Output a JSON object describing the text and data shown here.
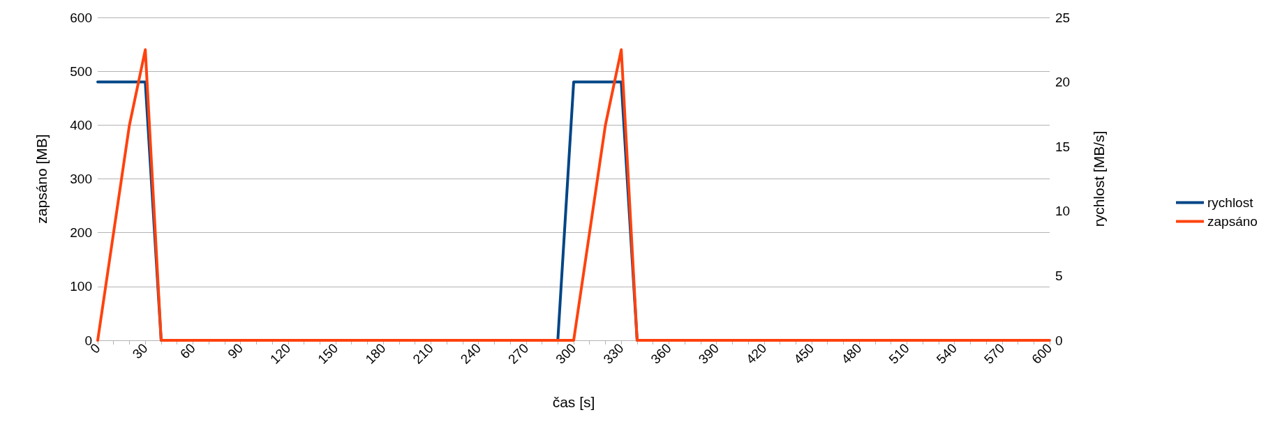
{
  "chart_data": {
    "type": "line",
    "xlabel": "čas [s]",
    "ylabel": "zapsáno [MB]",
    "y2label": "rychlost [MB/s]",
    "x": [
      0,
      10,
      20,
      30,
      40,
      50,
      60,
      70,
      80,
      90,
      100,
      110,
      120,
      130,
      140,
      150,
      160,
      170,
      180,
      190,
      200,
      210,
      220,
      230,
      240,
      250,
      260,
      270,
      280,
      290,
      300,
      310,
      320,
      330,
      340,
      350,
      360,
      370,
      380,
      390,
      400,
      410,
      420,
      430,
      440,
      450,
      460,
      470,
      480,
      490,
      500,
      510,
      520,
      530,
      540,
      550,
      560,
      570,
      580,
      590,
      600
    ],
    "series": [
      {
        "name": "rychlost",
        "color": "#004586",
        "axis": "y2",
        "values": [
          20,
          20,
          20,
          20,
          0,
          null,
          null,
          null,
          null,
          null,
          null,
          null,
          null,
          null,
          null,
          null,
          null,
          null,
          null,
          null,
          null,
          null,
          null,
          null,
          null,
          null,
          null,
          null,
          null,
          0,
          20,
          20,
          20,
          20,
          0,
          null,
          null,
          null,
          null,
          null,
          null,
          null,
          null,
          null,
          null,
          null,
          null,
          null,
          null,
          null,
          null,
          null,
          null,
          null,
          null,
          null,
          null,
          null,
          null,
          null,
          null
        ]
      },
      {
        "name": "zapsáno",
        "color": "#ff420e",
        "axis": "y",
        "values": [
          0,
          200,
          400,
          540,
          0,
          0,
          0,
          0,
          0,
          0,
          0,
          0,
          0,
          0,
          0,
          0,
          0,
          0,
          0,
          0,
          0,
          0,
          0,
          0,
          0,
          0,
          0,
          0,
          0,
          0,
          0,
          200,
          400,
          540,
          0,
          0,
          0,
          0,
          0,
          0,
          0,
          0,
          0,
          0,
          0,
          0,
          0,
          0,
          0,
          0,
          0,
          0,
          0,
          0,
          0,
          0,
          0,
          0,
          0,
          0,
          0
        ]
      }
    ],
    "xlim": [
      0,
      600
    ],
    "xticks": [
      0,
      {
        "value": 10,
        "label": null
      },
      {
        "value": 20,
        "label": null
      },
      30,
      {
        "value": 40,
        "label": null
      },
      {
        "value": 50,
        "label": null
      },
      60,
      {
        "value": 70,
        "label": null
      },
      {
        "value": 80,
        "label": null
      },
      90,
      {
        "value": 100,
        "label": null
      },
      {
        "value": 110,
        "label": null
      },
      120,
      {
        "value": 130,
        "label": null
      },
      {
        "value": 140,
        "label": null
      },
      150,
      {
        "value": 160,
        "label": null
      },
      {
        "value": 170,
        "label": null
      },
      180,
      {
        "value": 190,
        "label": null
      },
      {
        "value": 200,
        "label": null
      },
      210,
      {
        "value": 220,
        "label": null
      },
      {
        "value": 230,
        "label": null
      },
      240,
      {
        "value": 250,
        "label": null
      },
      {
        "value": 260,
        "label": null
      },
      270,
      {
        "value": 280,
        "label": null
      },
      {
        "value": 290,
        "label": null
      },
      300,
      {
        "value": 310,
        "label": null
      },
      {
        "value": 320,
        "label": null
      },
      330,
      {
        "value": 340,
        "label": null
      },
      {
        "value": 350,
        "label": null
      },
      360,
      {
        "value": 370,
        "label": null
      },
      {
        "value": 380,
        "label": null
      },
      390,
      {
        "value": 400,
        "label": null
      },
      {
        "value": 410,
        "label": null
      },
      420,
      {
        "value": 430,
        "label": null
      },
      {
        "value": 440,
        "label": null
      },
      450,
      {
        "value": 460,
        "label": null
      },
      {
        "value": 470,
        "label": null
      },
      480,
      {
        "value": 490,
        "label": null
      },
      {
        "value": 500,
        "label": null
      },
      510,
      {
        "value": 520,
        "label": null
      },
      {
        "value": 530,
        "label": null
      },
      540,
      {
        "value": 550,
        "label": null
      },
      {
        "value": 560,
        "label": null
      },
      570,
      {
        "value": 580,
        "label": null
      },
      {
        "value": 590,
        "label": null
      },
      600
    ],
    "ylim": [
      0,
      600
    ],
    "yticks": [
      0,
      100,
      200,
      300,
      400,
      500,
      600
    ],
    "y2lim": [
      0,
      25
    ],
    "y2ticks": [
      0,
      5,
      10,
      15,
      20,
      25
    ],
    "grid": "y",
    "legend": "right",
    "marker": "none",
    "line_style": "solid"
  }
}
